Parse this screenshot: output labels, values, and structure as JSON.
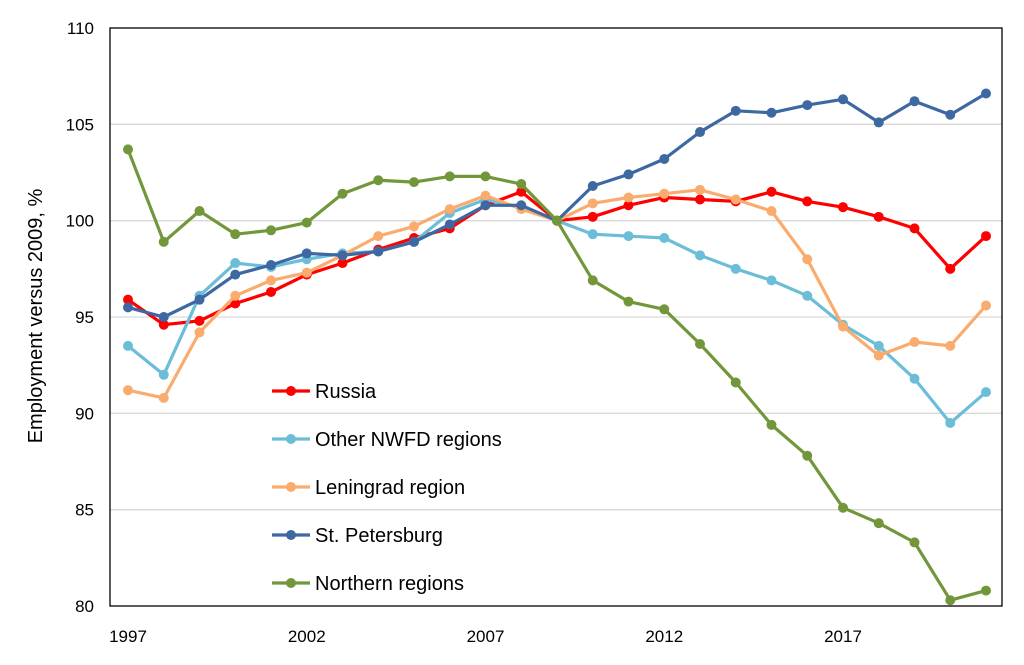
{
  "chart_data": {
    "type": "line",
    "title": "",
    "xlabel": "",
    "ylabel": "Employment versus 2009, %",
    "ylim": [
      80,
      110
    ],
    "yticks": [
      "80",
      "85",
      "90",
      "95",
      "100",
      "105",
      "110"
    ],
    "xlim": [
      1997,
      2021
    ],
    "xtick_labels": [
      "1997",
      "2002",
      "2007",
      "2012",
      "2017"
    ],
    "x": [
      1997,
      1998,
      1999,
      2000,
      2001,
      2002,
      2003,
      2004,
      2005,
      2006,
      2007,
      2008,
      2009,
      2010,
      2011,
      2012,
      2013,
      2014,
      2015,
      2016,
      2017,
      2018,
      2019,
      2020,
      2021
    ],
    "grid": true,
    "legend_position": "bottom-left",
    "series": [
      {
        "name": "Russia",
        "color": "#ff0000",
        "values": [
          95.9,
          94.6,
          94.8,
          95.7,
          96.3,
          97.2,
          97.8,
          98.5,
          99.1,
          99.6,
          100.8,
          101.5,
          100.0,
          100.2,
          100.8,
          101.2,
          101.1,
          101.0,
          101.5,
          101.0,
          100.7,
          100.2,
          99.6,
          97.5,
          99.2
        ]
      },
      {
        "name": "Other NWFD regions",
        "color": "#6bbdd8",
        "values": [
          93.5,
          92.0,
          96.1,
          97.8,
          97.6,
          98.0,
          98.3,
          98.4,
          98.9,
          100.4,
          101.1,
          100.7,
          100.0,
          99.3,
          99.2,
          99.1,
          98.2,
          97.5,
          96.9,
          96.1,
          94.6,
          93.5,
          91.8,
          89.5,
          91.1
        ]
      },
      {
        "name": "Leningrad region",
        "color": "#f9ac6e",
        "values": [
          91.2,
          90.8,
          94.2,
          96.1,
          96.9,
          97.3,
          98.2,
          99.2,
          99.7,
          100.6,
          101.3,
          100.6,
          100.0,
          100.9,
          101.2,
          101.4,
          101.6,
          101.1,
          100.5,
          98.0,
          94.5,
          93.0,
          93.7,
          93.5,
          95.6
        ]
      },
      {
        "name": "St. Petersburg",
        "color": "#3d68a2",
        "values": [
          95.5,
          95.0,
          95.9,
          97.2,
          97.7,
          98.3,
          98.2,
          98.4,
          98.9,
          99.8,
          100.8,
          100.8,
          100.0,
          101.8,
          102.4,
          103.2,
          104.6,
          105.7,
          105.6,
          106.0,
          106.3,
          105.1,
          106.2,
          105.5,
          106.6
        ]
      },
      {
        "name": "Northern regions",
        "color": "#72973a",
        "values": [
          103.7,
          98.9,
          100.5,
          99.3,
          99.5,
          99.9,
          101.4,
          102.1,
          102.0,
          102.3,
          102.3,
          101.9,
          100.0,
          96.9,
          95.8,
          95.4,
          93.6,
          91.6,
          89.4,
          87.8,
          85.1,
          84.3,
          83.3,
          80.3,
          80.8
        ]
      }
    ]
  }
}
